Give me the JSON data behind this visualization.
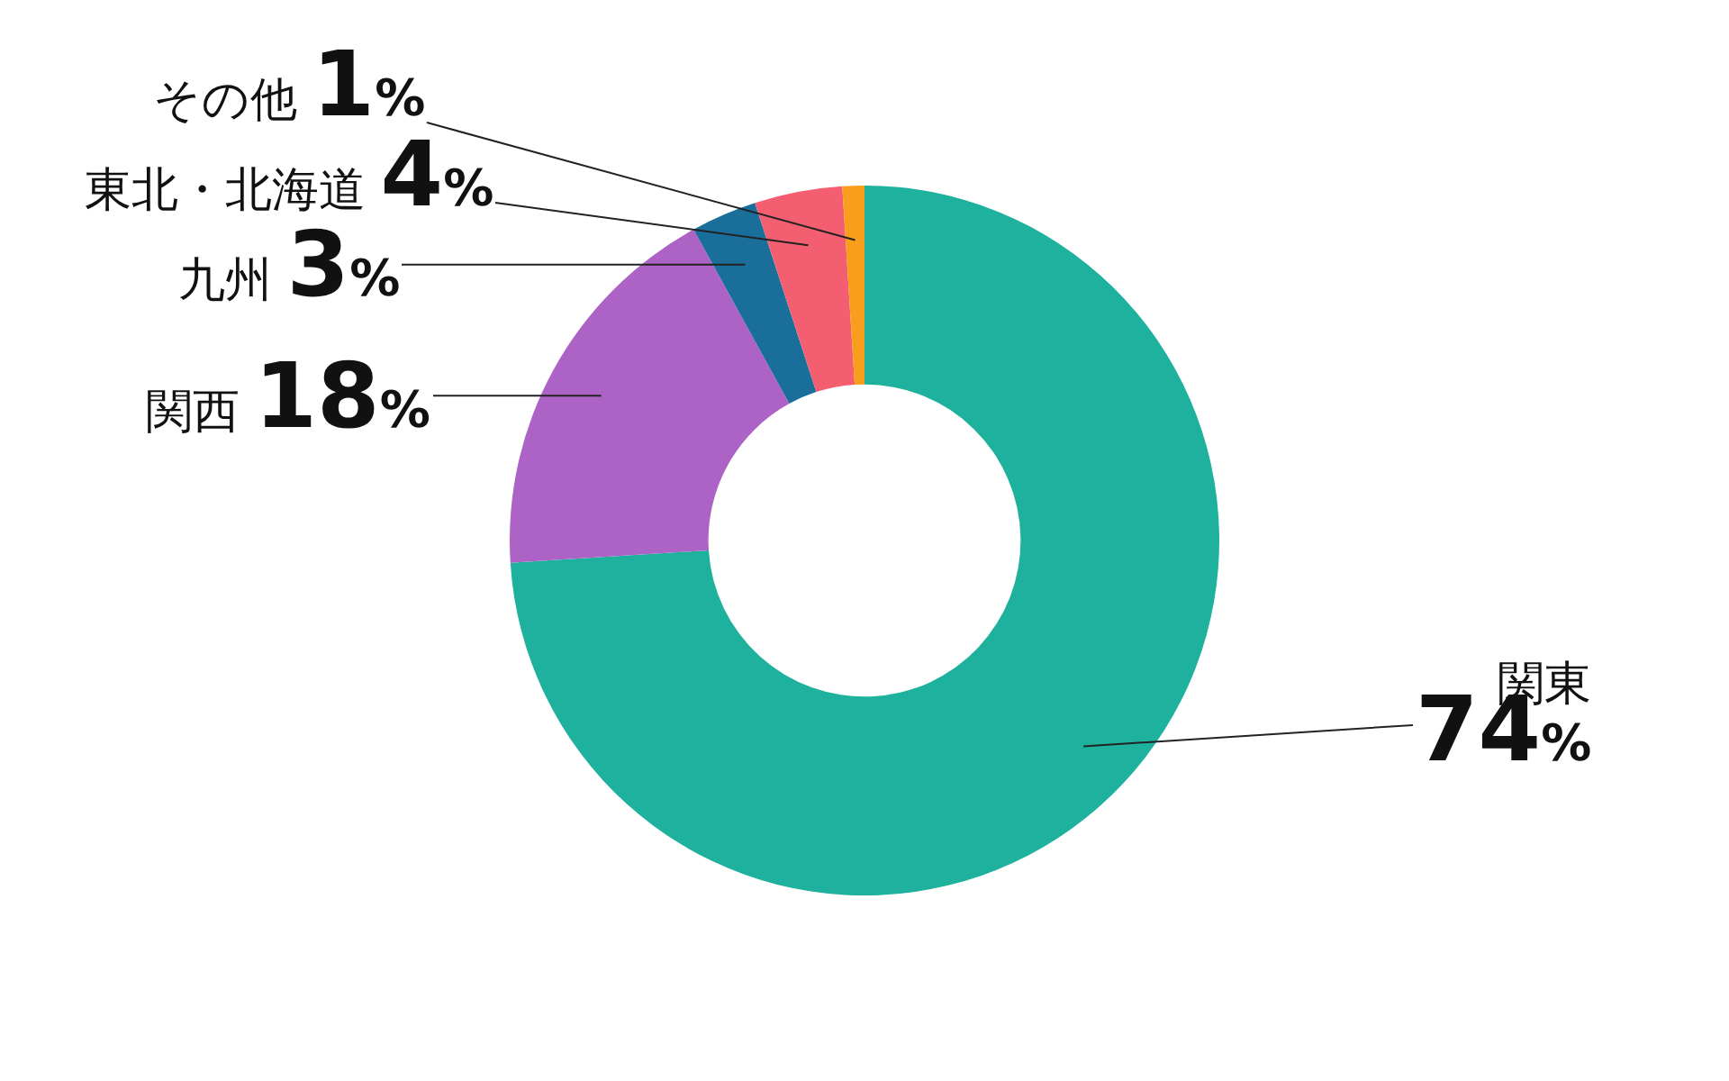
{
  "chart_data": {
    "type": "donut",
    "categories": [
      "関東",
      "関西",
      "九州",
      "東北・北海道",
      "その他"
    ],
    "values": [
      74,
      18,
      3,
      4,
      1
    ],
    "colors": [
      "#1eb19e",
      "#ad63c6",
      "#1a6e9a",
      "#f45e71",
      "#f99d1c"
    ],
    "value_labels": [
      "74%",
      "18%",
      "3%",
      "4%",
      "1%"
    ]
  }
}
